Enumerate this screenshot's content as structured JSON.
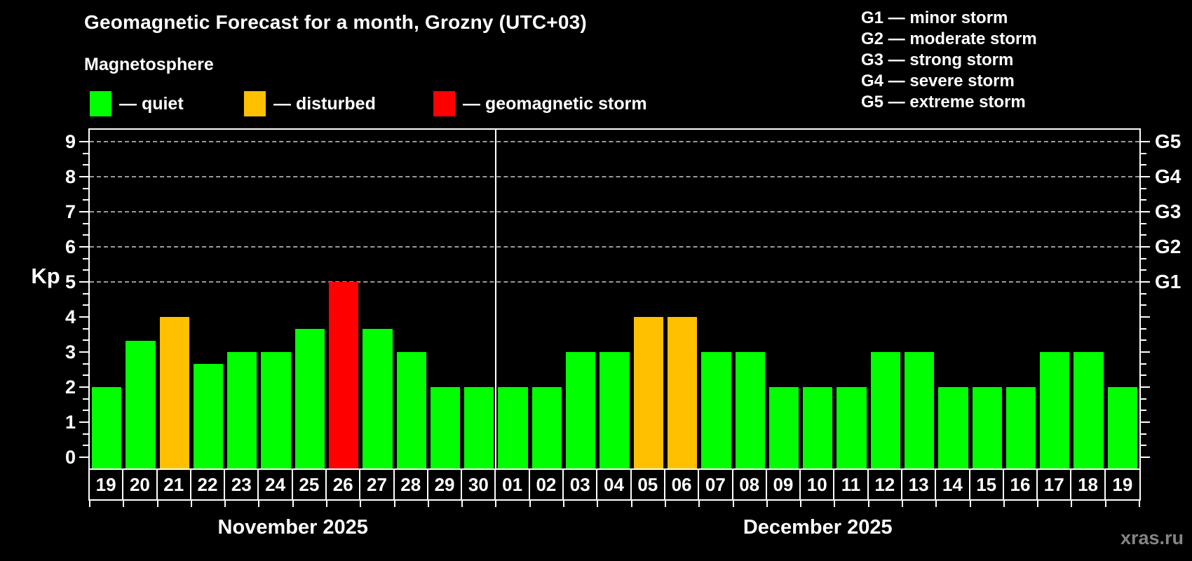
{
  "title": "Geomagnetic Forecast for a month, Grozny (UTC+03)",
  "legend": {
    "heading": "Magnetosphere",
    "items": [
      {
        "name": "quiet",
        "label": "— quiet",
        "color": "#00ff00"
      },
      {
        "name": "disturbed",
        "label": "— disturbed",
        "color": "#ffc000"
      },
      {
        "name": "storm",
        "label": "— geomagnetic storm",
        "color": "#ff0000"
      }
    ]
  },
  "g_scale_legend": [
    "G1 — minor storm",
    "G2 — moderate storm",
    "G3 — strong storm",
    "G4 — severe storm",
    "G5 — extreme storm"
  ],
  "watermark": "xras.ru",
  "chart_data": {
    "type": "bar",
    "title": "Geomagnetic Forecast for a month, Grozny (UTC+03)",
    "ylabel": "Kp",
    "ylim": [
      0,
      9.33
    ],
    "y_ticks": [
      0,
      1,
      2,
      3,
      4,
      5,
      6,
      7,
      8,
      9
    ],
    "grid": {
      "style": "dashed",
      "levels": [
        5,
        6,
        7,
        8,
        9
      ]
    },
    "right_axis": [
      {
        "label": "G1",
        "kp": 5
      },
      {
        "label": "G2",
        "kp": 6
      },
      {
        "label": "G3",
        "kp": 7
      },
      {
        "label": "G4",
        "kp": 8
      },
      {
        "label": "G5",
        "kp": 9
      }
    ],
    "status_colors": {
      "quiet": "#00ff00",
      "disturbed": "#ffc000",
      "storm": "#ff0000"
    },
    "groups": [
      {
        "label": "November 2025",
        "days": [
          "19",
          "20",
          "21",
          "22",
          "23",
          "24",
          "25",
          "26",
          "27",
          "28",
          "29",
          "30"
        ],
        "values": [
          2,
          3.33,
          4,
          2.67,
          3,
          3,
          3.67,
          5,
          3.67,
          3,
          2,
          2
        ],
        "status": [
          "quiet",
          "quiet",
          "disturbed",
          "quiet",
          "quiet",
          "quiet",
          "quiet",
          "storm",
          "quiet",
          "quiet",
          "quiet",
          "quiet"
        ]
      },
      {
        "label": "December 2025",
        "days": [
          "01",
          "02",
          "03",
          "04",
          "05",
          "06",
          "07",
          "08",
          "09",
          "10",
          "11",
          "12",
          "13",
          "14",
          "15",
          "16",
          "17",
          "18",
          "19"
        ],
        "values": [
          2,
          2,
          3,
          3,
          4,
          4,
          3,
          3,
          2,
          2,
          2,
          3,
          3,
          2,
          2,
          2,
          3,
          3,
          2
        ],
        "status": [
          "quiet",
          "quiet",
          "quiet",
          "quiet",
          "disturbed",
          "disturbed",
          "quiet",
          "quiet",
          "quiet",
          "quiet",
          "quiet",
          "quiet",
          "quiet",
          "quiet",
          "quiet",
          "quiet",
          "quiet",
          "quiet",
          "quiet"
        ]
      }
    ]
  }
}
